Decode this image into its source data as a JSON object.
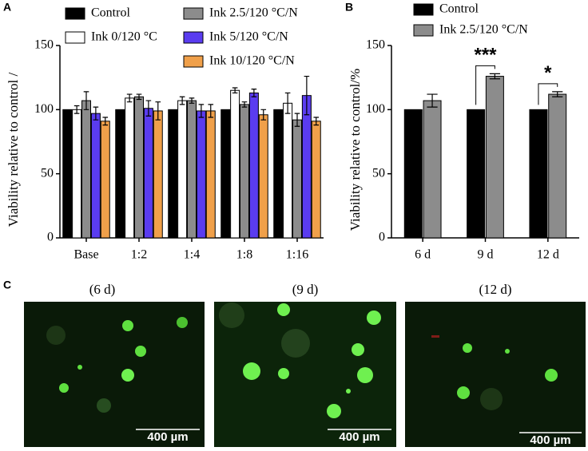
{
  "panel_labels": [
    "A",
    "B",
    "C"
  ],
  "chart_data": [
    {
      "type": "bar",
      "ylabel": "Viability relative to control /",
      "categories": [
        "Base",
        "1:2",
        "1:4",
        "1:8",
        "1:16"
      ],
      "series": [
        {
          "name": "Control",
          "color": "#000000",
          "values": [
            100,
            100,
            100,
            100,
            100
          ]
        },
        {
          "name": "Ink 0/120 °C",
          "color": "#ffffff",
          "values": [
            100,
            109,
            107,
            115,
            105
          ],
          "errors": [
            3,
            3,
            3,
            2,
            8
          ]
        },
        {
          "name": "Ink 2.5/120 °C/N",
          "color": "#8c8c8c",
          "values": [
            107,
            110,
            107,
            104,
            92
          ],
          "errors": [
            7,
            2,
            2,
            2,
            5
          ]
        },
        {
          "name": "Ink 5/120 °C/N",
          "color": "#5a3cf0",
          "values": [
            97,
            101,
            99,
            113,
            111
          ],
          "errors": [
            5,
            6,
            5,
            3,
            15
          ]
        },
        {
          "name": "Ink 10/120 °C/N",
          "color": "#f0a04a",
          "values": [
            91,
            99,
            99,
            96,
            91
          ],
          "errors": [
            3,
            7,
            5,
            4,
            3
          ]
        }
      ],
      "ylim": [
        0,
        150
      ],
      "yticks": [
        0,
        50,
        100,
        150
      ]
    },
    {
      "type": "bar",
      "ylabel": "Viability relative to control/%",
      "categories": [
        "6 d",
        "9 d",
        "12 d"
      ],
      "series": [
        {
          "name": "Control",
          "color": "#000000",
          "values": [
            100,
            100,
            100
          ]
        },
        {
          "name": "Ink 2.5/120 °C/N",
          "color": "#8c8c8c",
          "values": [
            107,
            126,
            112
          ],
          "errors": [
            5,
            2,
            2
          ]
        }
      ],
      "annotations": [
        "***",
        "*"
      ],
      "ylim": [
        0,
        150
      ],
      "yticks": [
        0,
        50,
        100,
        150
      ]
    }
  ],
  "images": [
    {
      "caption": "(6 d)",
      "scale_bar": "400 µm"
    },
    {
      "caption": "(9 d)",
      "scale_bar": "400 µm"
    },
    {
      "caption": "(12 d)",
      "scale_bar": "400 µm"
    }
  ]
}
